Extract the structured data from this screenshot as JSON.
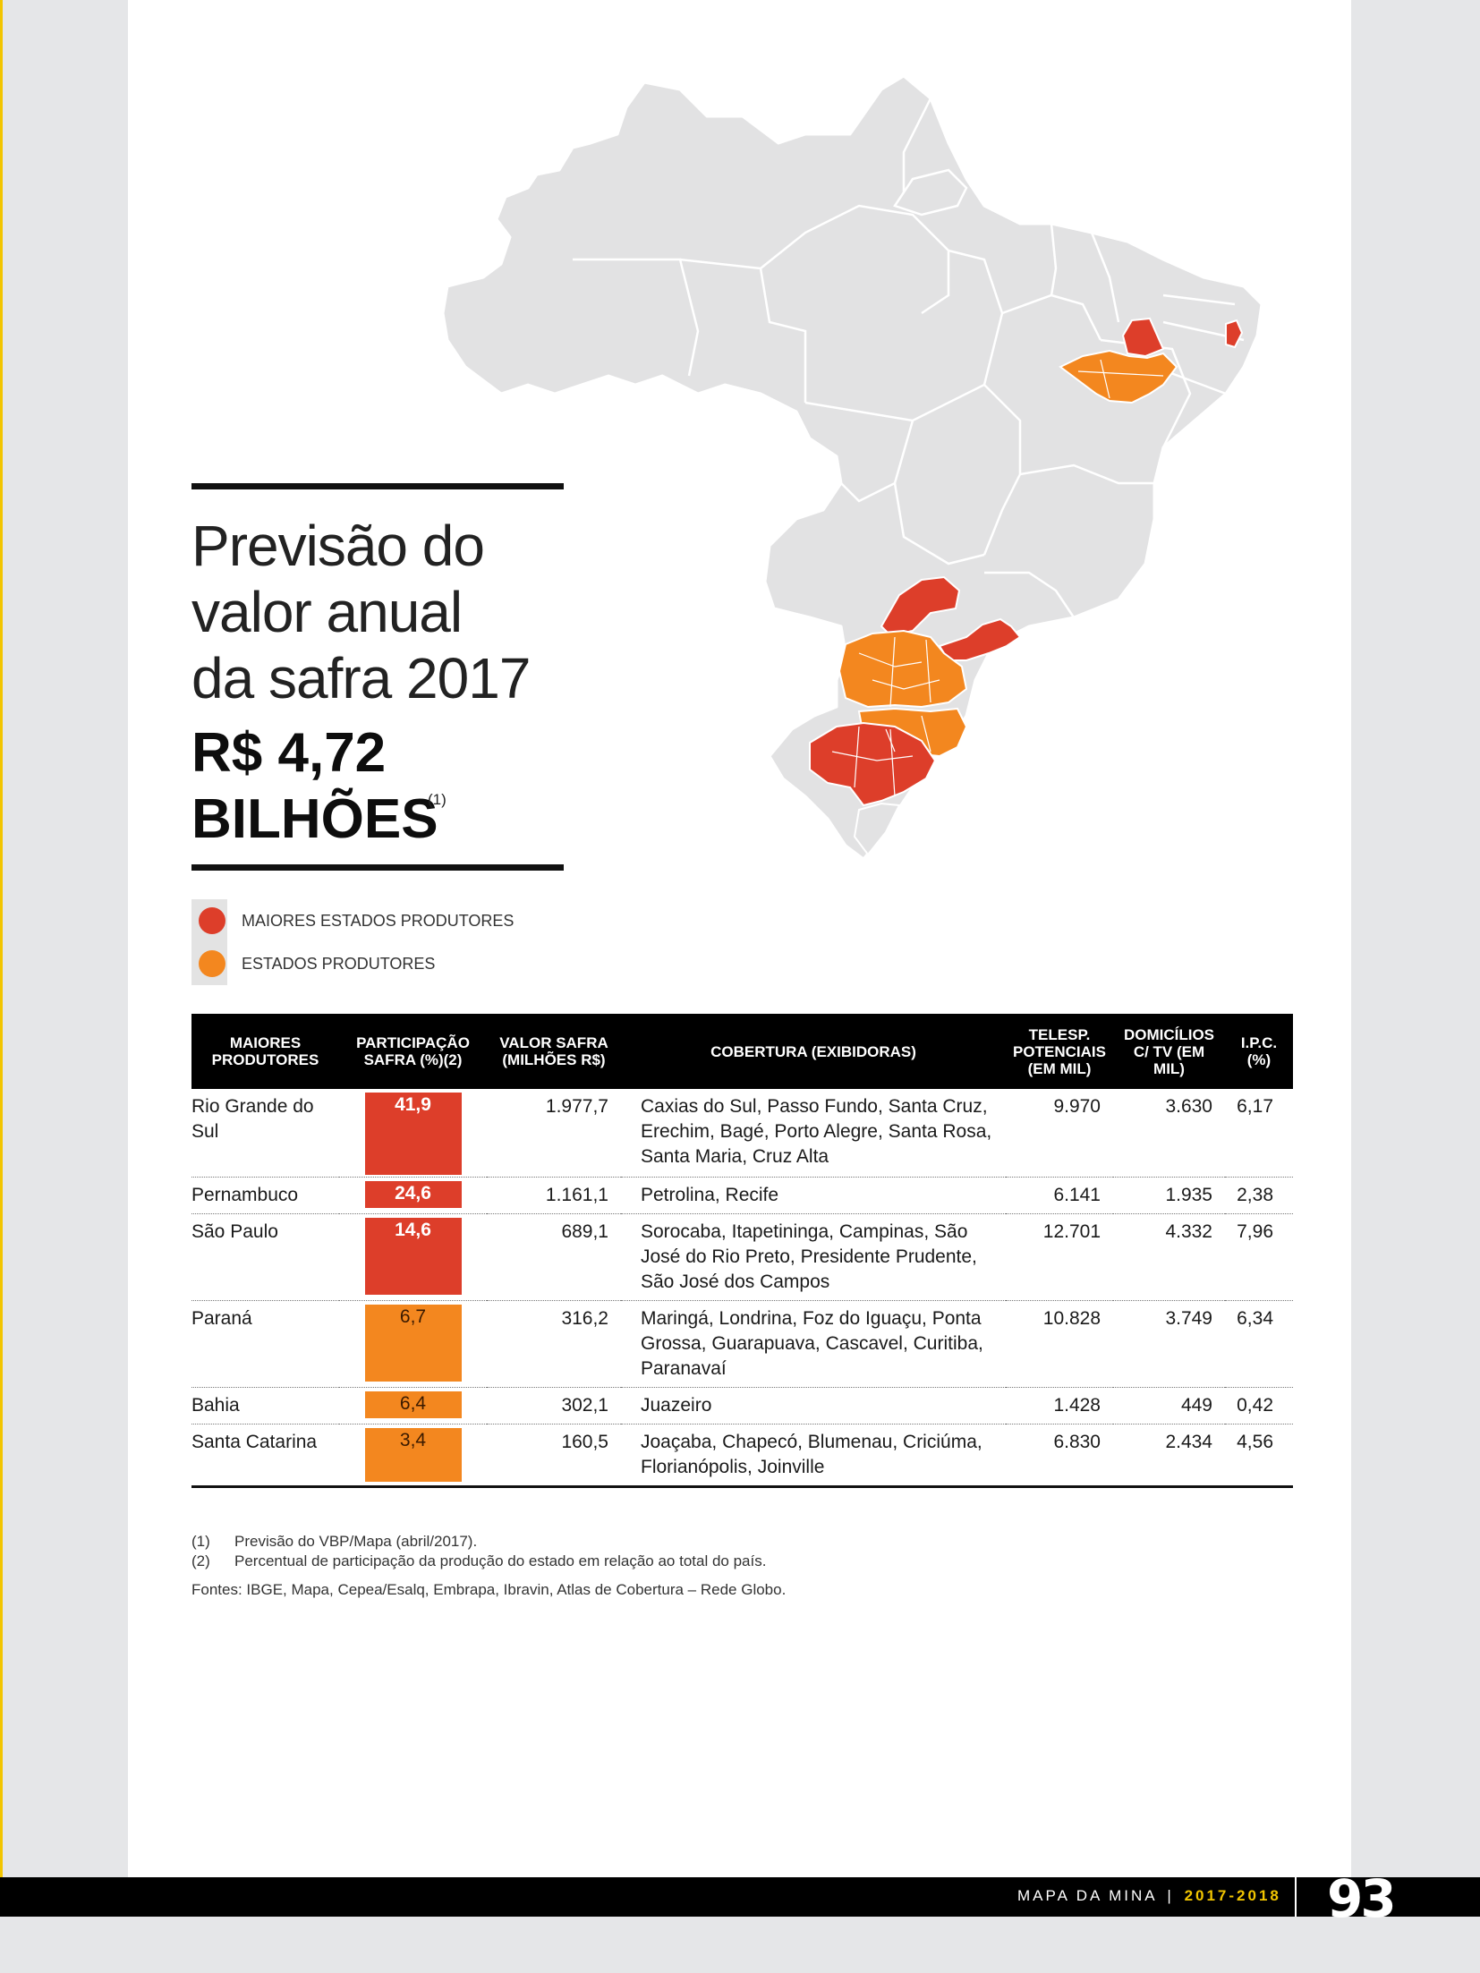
{
  "headline": {
    "lines": [
      "Previsão do",
      "valor anual",
      "da safra 2017"
    ],
    "amount_line1": "R$ 4,72",
    "amount_line2": "BILHÕES",
    "amount_note": "(1)"
  },
  "legend": {
    "major_label": "MAIORES ESTADOS PRODUTORES",
    "producer_label": "ESTADOS PRODUTORES",
    "major_color": "#dd3e2a",
    "producer_color": "#f3871f"
  },
  "table": {
    "headers": {
      "producer": "MAIORES PRODUTORES",
      "share": "PARTICIPAÇÃO SAFRA (%)(2)",
      "value": "VALOR SAFRA (MILHÕES R$)",
      "coverage": "COBERTURA (EXIBIDORAS)",
      "viewers": "TELESP. POTENCIAIS (EM MIL)",
      "households": "DOMICÍLIOS C/ TV (EM MIL)",
      "ipc": "I.P.C. (%)"
    },
    "rows": [
      {
        "state": "Rio Grande do Sul",
        "share": "41,9",
        "tier": "major",
        "value": "1.977,7",
        "coverage": "Caxias do Sul, Passo Fundo, Santa Cruz, Erechim, Bagé, Porto Alegre, Santa Rosa, Santa Maria, Cruz Alta",
        "viewers": "9.970",
        "households": "3.630",
        "ipc": "6,17"
      },
      {
        "state": "Pernambuco",
        "share": "24,6",
        "tier": "major",
        "value": "1.161,1",
        "coverage": "Petrolina, Recife",
        "viewers": "6.141",
        "households": "1.935",
        "ipc": "2,38"
      },
      {
        "state": "São Paulo",
        "share": "14,6",
        "tier": "major",
        "value": "689,1",
        "coverage": "Sorocaba, Itapetininga, Campinas, São José do Rio Preto, Presidente Prudente, São José dos Campos",
        "viewers": "12.701",
        "households": "4.332",
        "ipc": "7,96"
      },
      {
        "state": "Paraná",
        "share": "6,7",
        "tier": "producer",
        "value": "316,2",
        "coverage": "Maringá, Londrina, Foz do Iguaçu, Ponta Grossa, Guarapuava, Cascavel, Curitiba, Paranavaí",
        "viewers": "10.828",
        "households": "3.749",
        "ipc": "6,34"
      },
      {
        "state": "Bahia",
        "share": "6,4",
        "tier": "producer",
        "value": "302,1",
        "coverage": "Juazeiro",
        "viewers": "1.428",
        "households": "449",
        "ipc": "0,42"
      },
      {
        "state": "Santa Catarina",
        "share": "3,4",
        "tier": "producer",
        "value": "160,5",
        "coverage": "Joaçaba, Chapecó, Blumenau, Criciúma, Florianópolis, Joinville",
        "viewers": "6.830",
        "households": "2.434",
        "ipc": "4,56"
      }
    ]
  },
  "notes": {
    "n1_num": "(1)",
    "n1_text": "Previsão do VBP/Mapa (abril/2017).",
    "n2_num": "(2)",
    "n2_text": "Percentual de participação da produção do estado em relação ao total do país.",
    "sources": "Fontes: IBGE, Mapa, Cepea/Esalq, Embrapa, Ibravin, Atlas de Cobertura – Rede Globo."
  },
  "footer": {
    "publication": "MAPA DA MINA",
    "separator": "|",
    "years": "2017-2018",
    "page_number": "93"
  },
  "map": {
    "base_color": "#e2e2e3",
    "border_color": "#ffffff"
  }
}
